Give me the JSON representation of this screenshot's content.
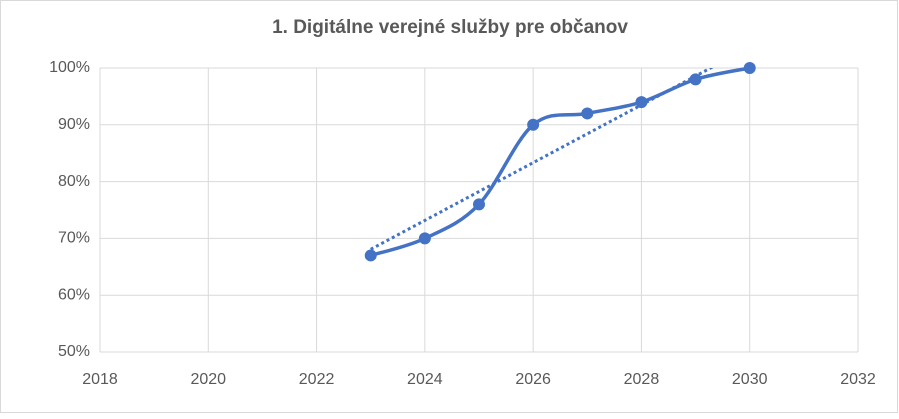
{
  "chart_data": {
    "type": "scatter",
    "title": "1. Digitálne verejné služby pre občanov",
    "series": [
      {
        "color": "#4472c4",
        "x": [
          2023,
          2024,
          2025,
          2026,
          2027,
          2028,
          2029,
          2030
        ],
        "values": [
          67,
          70,
          76,
          90,
          92,
          94,
          98,
          100
        ]
      }
    ],
    "smooth": true,
    "trendline": "linear",
    "xlim": [
      2018,
      2032
    ],
    "xticks": [
      2018,
      2020,
      2022,
      2024,
      2026,
      2028,
      2030,
      2032
    ],
    "ylim": [
      50,
      100
    ],
    "yticks": [
      {
        "value": 50,
        "label": "50%"
      },
      {
        "value": 60,
        "label": "60%"
      },
      {
        "value": 70,
        "label": "70%"
      },
      {
        "value": 80,
        "label": "80%"
      },
      {
        "value": 90,
        "label": "90%"
      },
      {
        "value": 100,
        "label": "100%"
      }
    ],
    "grid": true
  }
}
